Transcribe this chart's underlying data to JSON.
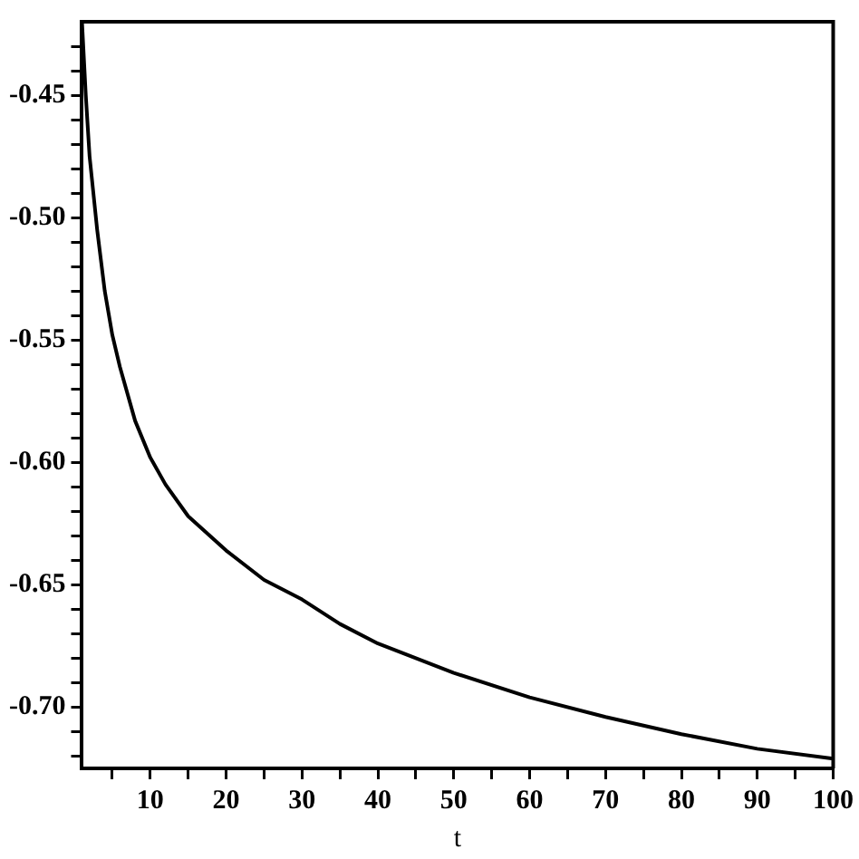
{
  "chart_data": {
    "type": "line",
    "xlabel": "t",
    "x": [
      1,
      1.5,
      2,
      3,
      4,
      5,
      6,
      8,
      10,
      12,
      15,
      20,
      25,
      30,
      35,
      40,
      50,
      60,
      70,
      80,
      90,
      100
    ],
    "series": [
      {
        "color": "#000000",
        "values": [
          -0.42,
          -0.45,
          -0.475,
          -0.505,
          -0.53,
          -0.548,
          -0.561,
          -0.583,
          -0.598,
          -0.609,
          -0.622,
          -0.636,
          -0.648,
          -0.656,
          -0.666,
          -0.674,
          -0.686,
          -0.696,
          -0.704,
          -0.711,
          -0.717,
          -0.721
        ]
      }
    ],
    "xlim": [
      1,
      100
    ],
    "xticks": [
      {
        "value": 5,
        "label": null
      },
      10,
      {
        "value": 15,
        "label": null
      },
      20,
      {
        "value": 25,
        "label": null
      },
      30,
      {
        "value": 35,
        "label": null
      },
      40,
      {
        "value": 45,
        "label": null
      },
      50,
      {
        "value": 55,
        "label": null
      },
      60,
      {
        "value": 65,
        "label": null
      },
      70,
      {
        "value": 75,
        "label": null
      },
      80,
      {
        "value": 85,
        "label": null
      },
      90,
      {
        "value": 95,
        "label": null
      },
      100
    ],
    "ylim": [
      -0.725,
      -0.42
    ],
    "yticks": [
      {
        "value": -0.72,
        "label": null
      },
      {
        "value": -0.71,
        "label": null
      },
      {
        "value": -0.7,
        "label": "-0.70"
      },
      {
        "value": -0.69,
        "label": null
      },
      {
        "value": -0.68,
        "label": null
      },
      {
        "value": -0.67,
        "label": null
      },
      {
        "value": -0.66,
        "label": null
      },
      {
        "value": -0.65,
        "label": "-0.65"
      },
      {
        "value": -0.64,
        "label": null
      },
      {
        "value": -0.63,
        "label": null
      },
      {
        "value": -0.62,
        "label": null
      },
      {
        "value": -0.61,
        "label": null
      },
      {
        "value": -0.6,
        "label": "-0.60"
      },
      {
        "value": -0.59,
        "label": null
      },
      {
        "value": -0.58,
        "label": null
      },
      {
        "value": -0.57,
        "label": null
      },
      {
        "value": -0.56,
        "label": null
      },
      {
        "value": -0.55,
        "label": "-0.55"
      },
      {
        "value": -0.54,
        "label": null
      },
      {
        "value": -0.53,
        "label": null
      },
      {
        "value": -0.52,
        "label": null
      },
      {
        "value": -0.51,
        "label": null
      },
      {
        "value": -0.5,
        "label": "-0.50"
      },
      {
        "value": -0.49,
        "label": null
      },
      {
        "value": -0.48,
        "label": null
      },
      {
        "value": -0.47,
        "label": null
      },
      {
        "value": -0.46,
        "label": null
      },
      {
        "value": -0.45,
        "label": "-0.45"
      },
      {
        "value": -0.44,
        "label": null
      },
      {
        "value": -0.43,
        "label": null
      }
    ],
    "grid": false,
    "legend": false,
    "marker": "none",
    "line_style": "solid"
  }
}
